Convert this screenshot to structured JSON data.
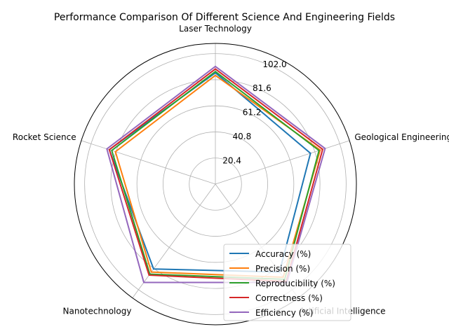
{
  "chart_data": {
    "type": "radar",
    "title": "Performance Comparison Of Different Science And Engineering Fields",
    "categories": [
      "Laser Technology",
      "Geological Engineering",
      "Artificial Intelligence",
      "Nanotechnology",
      "Rocket Science"
    ],
    "radial_ticks": [
      "20.4",
      "40.8",
      "61.2",
      "81.6",
      "102.0"
    ],
    "rlim": [
      0,
      110
    ],
    "grid": true,
    "legend_position": "lower-right",
    "series": [
      {
        "name": "Accuracy (%)",
        "color": "#1f77b4",
        "values": [
          87,
          78,
          85,
          82,
          87
        ]
      },
      {
        "name": "Precision (%)",
        "color": "#ff7f0e",
        "values": [
          85,
          86,
          90,
          85,
          82
        ]
      },
      {
        "name": "Reproducibility (%)",
        "color": "#2ca02c",
        "values": [
          88,
          85,
          92,
          87,
          85
        ]
      },
      {
        "name": "Correctness (%)",
        "color": "#d62728",
        "values": [
          90,
          88,
          94,
          88,
          87
        ]
      },
      {
        "name": "Efficiency (%)",
        "color": "#9467bd",
        "values": [
          92,
          90,
          95,
          95,
          89
        ]
      }
    ]
  }
}
